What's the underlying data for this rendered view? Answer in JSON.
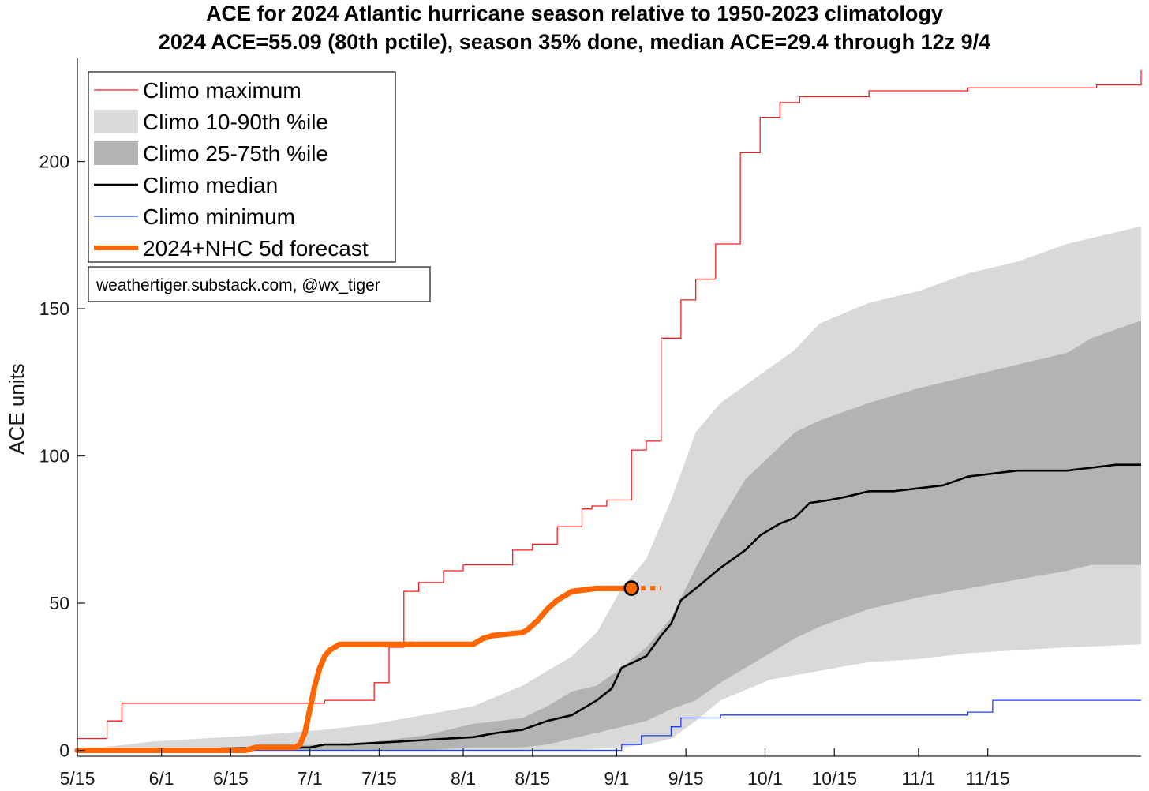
{
  "chart_data": {
    "type": "line",
    "title": "ACE for 2024 Atlantic hurricane season relative to 1950-2023 climatology",
    "subtitle": "2024 ACE=55.09 (80th pctile), season 35% done, median ACE=29.4 through 12z 9/4",
    "xlabel": "",
    "ylabel": "ACE units",
    "xticks": [
      "5/15",
      "6/1",
      "6/15",
      "7/1",
      "7/15",
      "8/1",
      "8/15",
      "9/1",
      "9/15",
      "10/1",
      "10/15",
      "11/1",
      "11/15"
    ],
    "xtick_days": [
      0,
      17,
      31,
      47,
      61,
      78,
      92,
      109,
      123,
      139,
      153,
      170,
      184
    ],
    "xlim_days": [
      0,
      215
    ],
    "yticks": [
      0,
      50,
      100,
      150,
      200
    ],
    "ylim": [
      -2,
      235
    ],
    "grid": false,
    "legend_position": "top-left",
    "colors": {
      "maximum": "#ff1a1a",
      "p10_90": "#d9d9d9",
      "p25_75": "#b3b3b3",
      "median": "#000000",
      "minimum": "#1f3dff",
      "forecast": "#ff6600"
    },
    "legend": [
      {
        "key": "maximum",
        "label": "Climo maximum",
        "kind": "thin-line"
      },
      {
        "key": "p10_90",
        "label": "Climo 10-90th %ile",
        "kind": "patch"
      },
      {
        "key": "p25_75",
        "label": "Climo 25-75th %ile",
        "kind": "patch"
      },
      {
        "key": "median",
        "label": "Climo median",
        "kind": "line"
      },
      {
        "key": "minimum",
        "label": "Climo minimum",
        "kind": "thin-line"
      },
      {
        "key": "forecast",
        "label": "2024+NHC 5d forecast",
        "kind": "thick-line"
      }
    ],
    "annotation": "weathertiger.substack.com, @wx_tiger",
    "series": [
      {
        "name": "Climo maximum",
        "x": [
          0,
          4,
          6,
          9,
          31,
          50,
          56,
          60,
          63,
          66,
          69,
          74,
          78,
          83,
          88,
          92,
          97,
          102,
          104,
          107,
          112,
          115,
          118,
          122,
          125,
          129,
          134,
          138,
          142,
          146,
          160,
          180,
          206,
          215
        ],
        "y": [
          4,
          4,
          10,
          16,
          16,
          17,
          17,
          23,
          35,
          54,
          57,
          61,
          63,
          63,
          68,
          70,
          76,
          82,
          83,
          85,
          102,
          105,
          140,
          153,
          160,
          172,
          203,
          215,
          220,
          222,
          224,
          225,
          226,
          231
        ]
      },
      {
        "name": "Climo 10-90th %ile upper",
        "x": [
          0,
          15,
          35,
          50,
          60,
          70,
          80,
          90,
          100,
          105,
          110,
          115,
          120,
          125,
          130,
          135,
          140,
          145,
          150,
          160,
          170,
          180,
          190,
          200,
          215
        ],
        "y": [
          0,
          3,
          5,
          7,
          9,
          12,
          15,
          22,
          32,
          40,
          55,
          65,
          85,
          108,
          118,
          124,
          130,
          136,
          145,
          152,
          156,
          162,
          166,
          172,
          178
        ]
      },
      {
        "name": "Climo 10-90th %ile lower",
        "x": [
          0,
          60,
          100,
          110,
          115,
          120,
          125,
          130,
          140,
          150,
          160,
          170,
          180,
          190,
          200,
          215
        ],
        "y": [
          0,
          0,
          0,
          1,
          2,
          4,
          10,
          17,
          24,
          27,
          30,
          31,
          33,
          34,
          35,
          36
        ]
      },
      {
        "name": "Climo 25-75th %ile upper",
        "x": [
          0,
          30,
          50,
          60,
          70,
          80,
          90,
          95,
          100,
          105,
          110,
          115,
          120,
          125,
          130,
          135,
          140,
          145,
          150,
          160,
          170,
          180,
          190,
          200,
          205,
          215
        ],
        "y": [
          0,
          1,
          2,
          3,
          5,
          9,
          11,
          15,
          20,
          22,
          28,
          35,
          45,
          62,
          78,
          92,
          100,
          108,
          112,
          118,
          123,
          127,
          131,
          135,
          140,
          146
        ]
      },
      {
        "name": "Climo 25-75th %ile lower",
        "x": [
          0,
          70,
          80,
          90,
          95,
          100,
          105,
          110,
          115,
          120,
          125,
          130,
          135,
          140,
          145,
          150,
          160,
          170,
          180,
          190,
          200,
          205,
          215
        ],
        "y": [
          0,
          0,
          1,
          1,
          2,
          4,
          6,
          8,
          10,
          14,
          17,
          23,
          28,
          33,
          38,
          42,
          48,
          52,
          55,
          58,
          61,
          63,
          63
        ]
      },
      {
        "name": "Climo median",
        "x": [
          0,
          47,
          50,
          55,
          60,
          65,
          70,
          75,
          80,
          85,
          90,
          95,
          100,
          105,
          108,
          110,
          115,
          118,
          120,
          122,
          125,
          130,
          135,
          138,
          142,
          145,
          148,
          152,
          155,
          160,
          165,
          170,
          175,
          180,
          185,
          190,
          200,
          210,
          215
        ],
        "y": [
          0,
          1,
          2,
          2,
          2.5,
          3,
          3.5,
          4,
          4.5,
          6,
          7,
          10,
          12,
          17,
          21,
          28,
          32,
          39,
          43,
          51,
          55,
          62,
          68,
          73,
          77,
          79,
          84,
          85,
          86,
          88,
          88,
          89,
          90,
          93,
          94,
          95,
          95,
          97,
          97
        ]
      },
      {
        "name": "Climo minimum",
        "x": [
          0,
          108,
          110,
          112,
          114,
          118,
          120,
          122,
          128,
          130,
          140,
          150,
          160,
          170,
          180,
          185,
          190,
          200,
          215
        ],
        "y": [
          0,
          0,
          2,
          2,
          5,
          5,
          8,
          11,
          11,
          12,
          12,
          12,
          12,
          12,
          13,
          17,
          17,
          17,
          17
        ]
      },
      {
        "name": "2024+NHC 5d forecast",
        "x": [
          0,
          34,
          36,
          40,
          44,
          45,
          46,
          47,
          48,
          49,
          50,
          51,
          53,
          55,
          60,
          70,
          75,
          80,
          82,
          84,
          90,
          91,
          93,
          95,
          97,
          100,
          105,
          110,
          112
        ],
        "y": [
          0,
          0,
          1,
          1,
          1,
          2,
          6,
          14,
          22,
          28,
          32,
          34,
          36,
          36,
          36,
          36,
          36,
          36,
          38,
          39,
          40,
          41,
          44,
          48,
          51,
          54,
          55,
          55,
          55.09
        ]
      },
      {
        "name": "2024+NHC 5d forecast (projection)",
        "x": [
          112,
          118
        ],
        "y": [
          55.09,
          55.09
        ]
      }
    ],
    "marker": {
      "x": 112,
      "y": 55.09
    }
  }
}
